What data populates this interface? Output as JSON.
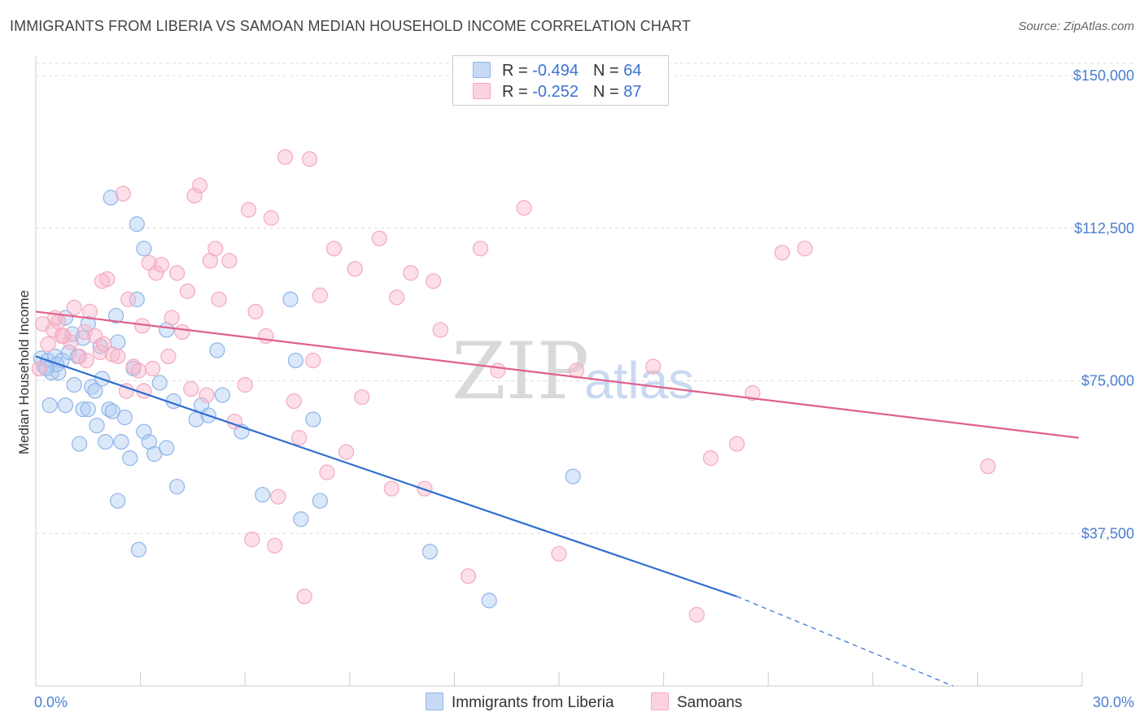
{
  "title": "IMMIGRANTS FROM LIBERIA VS SAMOAN MEDIAN HOUSEHOLD INCOME CORRELATION CHART",
  "source": "Source: ZipAtlas.com",
  "watermark": {
    "zip": "ZIP",
    "atlas": "atlas"
  },
  "legend": {
    "r_label": "R =",
    "n_label": "N =",
    "series": [
      {
        "r": "-0.494",
        "n": "64"
      },
      {
        "r": "-0.252",
        "n": "87"
      }
    ]
  },
  "chart_data": {
    "type": "scatter",
    "ylabel": "Median Household Income",
    "x_tick_labels": [
      "0.0%",
      "30.0%"
    ],
    "y_tick_labels": [
      "$37,500",
      "$75,000",
      "$112,500",
      "$150,000"
    ],
    "xlim": [
      0,
      30
    ],
    "ylim": [
      0,
      155000
    ],
    "y_ticks": [
      37500,
      75000,
      112500,
      150000
    ],
    "grid": "horizontal dashed",
    "legend_position": "top-center and bottom",
    "series": [
      {
        "name": "Immigrants from Liberia",
        "color": "#8fb4e8",
        "line_color": "#2f6fd0",
        "trend": {
          "x0": 0,
          "y0": 81000,
          "x1": 20.1,
          "y1": 22000,
          "dash_to_x": 26.3,
          "dash_to_y": 0
        },
        "points": [
          [
            0.15,
            80500
          ],
          [
            0.25,
            78500
          ],
          [
            0.35,
            80000
          ],
          [
            0.45,
            77000
          ],
          [
            0.55,
            81000
          ],
          [
            0.65,
            77000
          ],
          [
            0.75,
            80000
          ],
          [
            0.85,
            90500
          ],
          [
            0.95,
            82000
          ],
          [
            1.05,
            86500
          ],
          [
            1.2,
            81000
          ],
          [
            1.35,
            85500
          ],
          [
            1.5,
            89000
          ],
          [
            0.4,
            69000
          ],
          [
            0.85,
            69000
          ],
          [
            1.1,
            74000
          ],
          [
            1.25,
            59500
          ],
          [
            1.35,
            68000
          ],
          [
            1.5,
            68000
          ],
          [
            1.6,
            73500
          ],
          [
            1.75,
            64000
          ],
          [
            1.85,
            83500
          ],
          [
            1.9,
            75500
          ],
          [
            2.0,
            60000
          ],
          [
            2.1,
            68000
          ],
          [
            2.2,
            67500
          ],
          [
            2.3,
            91000
          ],
          [
            2.35,
            84500
          ],
          [
            2.45,
            60000
          ],
          [
            2.55,
            66000
          ],
          [
            2.7,
            56000
          ],
          [
            2.8,
            78000
          ],
          [
            2.9,
            95000
          ],
          [
            3.1,
            62500
          ],
          [
            3.25,
            60000
          ],
          [
            3.4,
            57000
          ],
          [
            3.55,
            74500
          ],
          [
            3.75,
            58500
          ],
          [
            3.95,
            70000
          ],
          [
            4.05,
            49000
          ],
          [
            4.6,
            65500
          ],
          [
            4.75,
            69000
          ],
          [
            4.95,
            66500
          ],
          [
            5.2,
            82500
          ],
          [
            5.35,
            71500
          ],
          [
            5.9,
            62500
          ],
          [
            6.5,
            47000
          ],
          [
            7.3,
            95000
          ],
          [
            7.45,
            80000
          ],
          [
            7.6,
            41000
          ],
          [
            7.95,
            65500
          ],
          [
            8.15,
            45500
          ],
          [
            11.3,
            33000
          ],
          [
            13.0,
            21000
          ],
          [
            15.4,
            51500
          ],
          [
            2.15,
            120000
          ],
          [
            2.9,
            113500
          ],
          [
            3.1,
            107500
          ],
          [
            3.75,
            87500
          ],
          [
            2.35,
            45500
          ],
          [
            2.95,
            33500
          ],
          [
            0.6,
            79000
          ],
          [
            1.7,
            72500
          ],
          [
            0.3,
            78000
          ]
        ]
      },
      {
        "name": "Samoans",
        "color": "#f4a9c0",
        "line_color": "#e0608a",
        "trend": {
          "x0": 0,
          "y0": 92000,
          "x1": 29.9,
          "y1": 61000
        },
        "points": [
          [
            0.1,
            78000
          ],
          [
            0.2,
            89000
          ],
          [
            0.35,
            84000
          ],
          [
            0.5,
            87500
          ],
          [
            0.65,
            89500
          ],
          [
            0.8,
            86000
          ],
          [
            1.0,
            84500
          ],
          [
            1.1,
            93000
          ],
          [
            1.25,
            81000
          ],
          [
            1.4,
            87000
          ],
          [
            1.55,
            92000
          ],
          [
            1.7,
            86000
          ],
          [
            1.85,
            82000
          ],
          [
            1.95,
            84000
          ],
          [
            2.05,
            100000
          ],
          [
            2.2,
            81500
          ],
          [
            2.35,
            81000
          ],
          [
            2.5,
            121000
          ],
          [
            2.65,
            95000
          ],
          [
            2.8,
            78500
          ],
          [
            2.95,
            77500
          ],
          [
            3.1,
            72500
          ],
          [
            3.25,
            104000
          ],
          [
            3.45,
            101500
          ],
          [
            3.6,
            103500
          ],
          [
            3.8,
            81000
          ],
          [
            3.9,
            90500
          ],
          [
            4.05,
            101500
          ],
          [
            4.2,
            87000
          ],
          [
            4.35,
            97000
          ],
          [
            4.55,
            120500
          ],
          [
            4.7,
            123000
          ],
          [
            4.9,
            71500
          ],
          [
            5.0,
            104500
          ],
          [
            5.15,
            107500
          ],
          [
            5.25,
            95000
          ],
          [
            5.55,
            104500
          ],
          [
            5.7,
            65000
          ],
          [
            6.1,
            117000
          ],
          [
            6.3,
            92000
          ],
          [
            6.6,
            86000
          ],
          [
            6.75,
            115000
          ],
          [
            6.95,
            46500
          ],
          [
            7.15,
            130000
          ],
          [
            7.4,
            70000
          ],
          [
            7.55,
            61000
          ],
          [
            7.85,
            129500
          ],
          [
            7.95,
            80000
          ],
          [
            8.15,
            96000
          ],
          [
            8.35,
            52500
          ],
          [
            8.55,
            107500
          ],
          [
            8.9,
            57500
          ],
          [
            9.15,
            102500
          ],
          [
            9.35,
            71000
          ],
          [
            9.85,
            110000
          ],
          [
            10.2,
            48500
          ],
          [
            10.35,
            95500
          ],
          [
            10.75,
            101500
          ],
          [
            11.15,
            48500
          ],
          [
            11.4,
            99500
          ],
          [
            11.6,
            87500
          ],
          [
            12.4,
            27000
          ],
          [
            12.75,
            107500
          ],
          [
            13.25,
            77500
          ],
          [
            14.0,
            117500
          ],
          [
            15.0,
            32500
          ],
          [
            15.5,
            77500
          ],
          [
            17.7,
            78500
          ],
          [
            18.95,
            17500
          ],
          [
            19.35,
            56000
          ],
          [
            20.1,
            59500
          ],
          [
            20.55,
            72000
          ],
          [
            21.4,
            106500
          ],
          [
            22.05,
            107500
          ],
          [
            27.3,
            54000
          ],
          [
            1.45,
            80000
          ],
          [
            0.75,
            86000
          ],
          [
            2.6,
            72500
          ],
          [
            3.35,
            78000
          ],
          [
            4.45,
            73000
          ],
          [
            6.0,
            74000
          ],
          [
            6.2,
            36000
          ],
          [
            6.85,
            34500
          ],
          [
            7.7,
            22000
          ],
          [
            3.05,
            88500
          ],
          [
            1.9,
            99500
          ],
          [
            0.55,
            90500
          ]
        ]
      }
    ]
  }
}
